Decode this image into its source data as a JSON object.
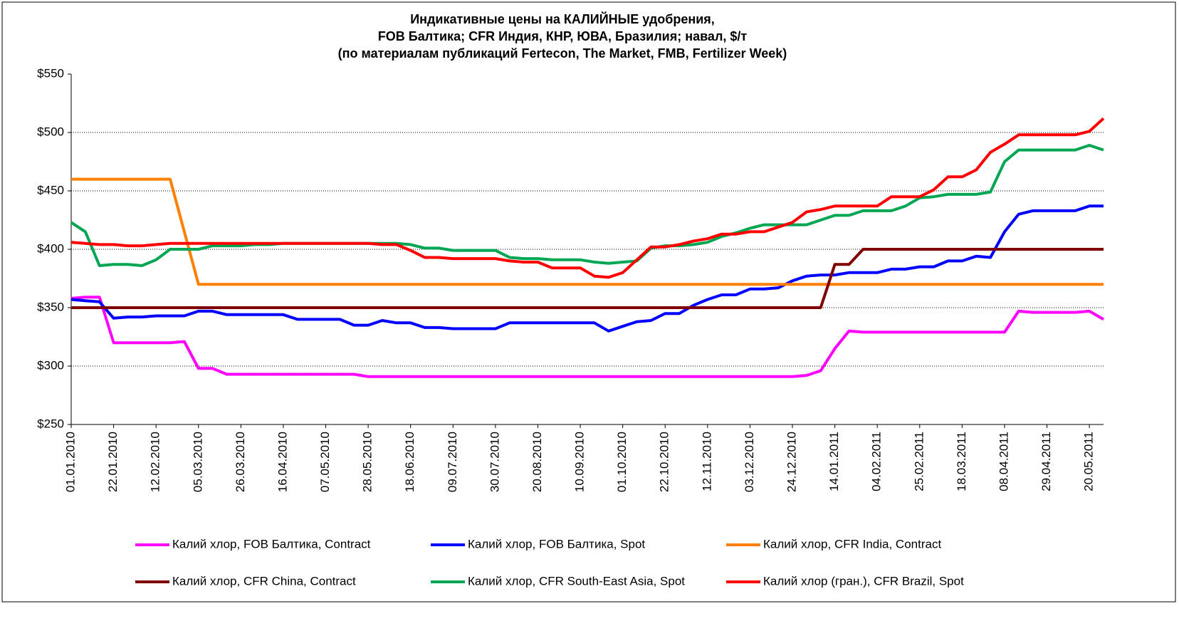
{
  "chart_data": {
    "type": "line",
    "title": [
      "Индикативные цены на КАЛИЙНЫЕ удобрения,",
      "FOB Балтика; CFR Индия, КНР, ЮВА, Бразилия; навал, $/т",
      "(по материалам публикаций Fertecon, The Market, FMB, Fertilizer Week)"
    ],
    "categories": [
      "01.01.2010",
      null,
      null,
      "22.01.2010",
      null,
      null,
      "12.02.2010",
      null,
      null,
      "05.03.2010",
      null,
      null,
      "26.03.2010",
      null,
      null,
      "16.04.2010",
      null,
      null,
      "07.05.2010",
      null,
      null,
      "28.05.2010",
      null,
      null,
      "18.06.2010",
      null,
      null,
      "09.07.2010",
      null,
      null,
      "30.07.2010",
      null,
      null,
      "20.08.2010",
      null,
      null,
      "10.09.2010",
      null,
      null,
      "01.10.2010",
      null,
      null,
      "22.10.2010",
      null,
      null,
      "12.11.2010",
      null,
      null,
      "03.12.2010",
      null,
      null,
      "24.12.2010",
      null,
      null,
      "14.01.2011",
      null,
      null,
      "04.02.2011",
      null,
      null,
      "25.02.2011",
      null,
      null,
      "18.03.2011",
      null,
      null,
      "08.04.2011",
      null,
      null,
      "29.04.2011",
      null,
      null,
      "20.05.2011",
      null
    ],
    "ylim": [
      250,
      550
    ],
    "yticks": [
      {
        "value": 250,
        "label": "$250"
      },
      {
        "value": 300,
        "label": "$300"
      },
      {
        "value": 350,
        "label": "$350"
      },
      {
        "value": 400,
        "label": "$400"
      },
      {
        "value": 450,
        "label": "$450"
      },
      {
        "value": 500,
        "label": "$500"
      },
      {
        "value": 550,
        "label": "$550"
      }
    ],
    "grid": true,
    "legend": "bottom",
    "series": [
      {
        "name": "Калий хлор, FOB Балтика, Contract",
        "color": "#ff00ff",
        "values": [
          358,
          359,
          359,
          320,
          320,
          320,
          320,
          320,
          321,
          298,
          298,
          293,
          293,
          293,
          293,
          293,
          293,
          293,
          293,
          293,
          293,
          291,
          291,
          291,
          291,
          291,
          291,
          291,
          291,
          291,
          291,
          291,
          291,
          291,
          291,
          291,
          291,
          291,
          291,
          291,
          291,
          291,
          291,
          291,
          291,
          291,
          291,
          291,
          291,
          291,
          291,
          291,
          292,
          296,
          315,
          330,
          329,
          329,
          329,
          329,
          329,
          329,
          329,
          329,
          329,
          329,
          329,
          347,
          346,
          346,
          346,
          346,
          347,
          340
        ]
      },
      {
        "name": "Калий хлор, FOB Балтика, Spot",
        "color": "#0000ff",
        "values": [
          357,
          356,
          355,
          341,
          342,
          342,
          343,
          343,
          343,
          347,
          347,
          344,
          344,
          344,
          344,
          344,
          340,
          340,
          340,
          340,
          335,
          335,
          339,
          337,
          337,
          333,
          333,
          332,
          332,
          332,
          332,
          337,
          337,
          337,
          337,
          337,
          337,
          337,
          330,
          334,
          338,
          339,
          345,
          345,
          352,
          357,
          361,
          361,
          366,
          366,
          367,
          373,
          377,
          378,
          378,
          380,
          380,
          380,
          383,
          383,
          385,
          385,
          390,
          390,
          394,
          393,
          415,
          430,
          433,
          433,
          433,
          433,
          437,
          437
        ]
      },
      {
        "name": "Калий хлор, CFR India, Contract",
        "color": "#ff7f00",
        "values": [
          460,
          460,
          460,
          460,
          460,
          460,
          460,
          460,
          415,
          370,
          370,
          370,
          370,
          370,
          370,
          370,
          370,
          370,
          370,
          370,
          370,
          370,
          370,
          370,
          370,
          370,
          370,
          370,
          370,
          370,
          370,
          370,
          370,
          370,
          370,
          370,
          370,
          370,
          370,
          370,
          370,
          370,
          370,
          370,
          370,
          370,
          370,
          370,
          370,
          370,
          370,
          370,
          370,
          370,
          370,
          370,
          370,
          370,
          370,
          370,
          370,
          370,
          370,
          370,
          370,
          370,
          370,
          370,
          370,
          370,
          370,
          370,
          370,
          370
        ]
      },
      {
        "name": "Калий хлор, CFR China, Contract",
        "color": "#800000",
        "values": [
          350,
          350,
          350,
          350,
          350,
          350,
          350,
          350,
          350,
          350,
          350,
          350,
          350,
          350,
          350,
          350,
          350,
          350,
          350,
          350,
          350,
          350,
          350,
          350,
          350,
          350,
          350,
          350,
          350,
          350,
          350,
          350,
          350,
          350,
          350,
          350,
          350,
          350,
          350,
          350,
          350,
          350,
          350,
          350,
          350,
          350,
          350,
          350,
          350,
          350,
          350,
          350,
          350,
          350,
          387,
          387,
          400,
          400,
          400,
          400,
          400,
          400,
          400,
          400,
          400,
          400,
          400,
          400,
          400,
          400,
          400,
          400,
          400,
          400
        ]
      },
      {
        "name": "Калий хлор, CFR South-East Asia, Spot",
        "color": "#00a651",
        "values": [
          423,
          415,
          386,
          387,
          387,
          386,
          391,
          400,
          400,
          400,
          403,
          403,
          403,
          404,
          404,
          405,
          405,
          405,
          405,
          405,
          405,
          405,
          405,
          405,
          404,
          401,
          401,
          399,
          399,
          399,
          399,
          393,
          392,
          392,
          391,
          391,
          391,
          389,
          388,
          389,
          390,
          401,
          403,
          403,
          404,
          406,
          411,
          414,
          418,
          421,
          421,
          421,
          421,
          425,
          429,
          429,
          433,
          433,
          433,
          437,
          444,
          445,
          447,
          447,
          447,
          449,
          475,
          485,
          485,
          485,
          485,
          485,
          489,
          485
        ]
      },
      {
        "name": "Калий хлор (гран.), CFR Brazil, Spot",
        "color": "#ff0000",
        "values": [
          406,
          405,
          404,
          404,
          403,
          403,
          404,
          405,
          405,
          405,
          405,
          405,
          405,
          405,
          405,
          405,
          405,
          405,
          405,
          405,
          405,
          405,
          404,
          404,
          399,
          393,
          393,
          392,
          392,
          392,
          392,
          390,
          389,
          389,
          384,
          384,
          384,
          377,
          376,
          380,
          391,
          402,
          402,
          404,
          407,
          409,
          413,
          413,
          415,
          415,
          419,
          423,
          432,
          434,
          437,
          437,
          437,
          437,
          445,
          445,
          445,
          451,
          462,
          462,
          468,
          483,
          490,
          498,
          498,
          498,
          498,
          498,
          501,
          512
        ]
      }
    ]
  }
}
